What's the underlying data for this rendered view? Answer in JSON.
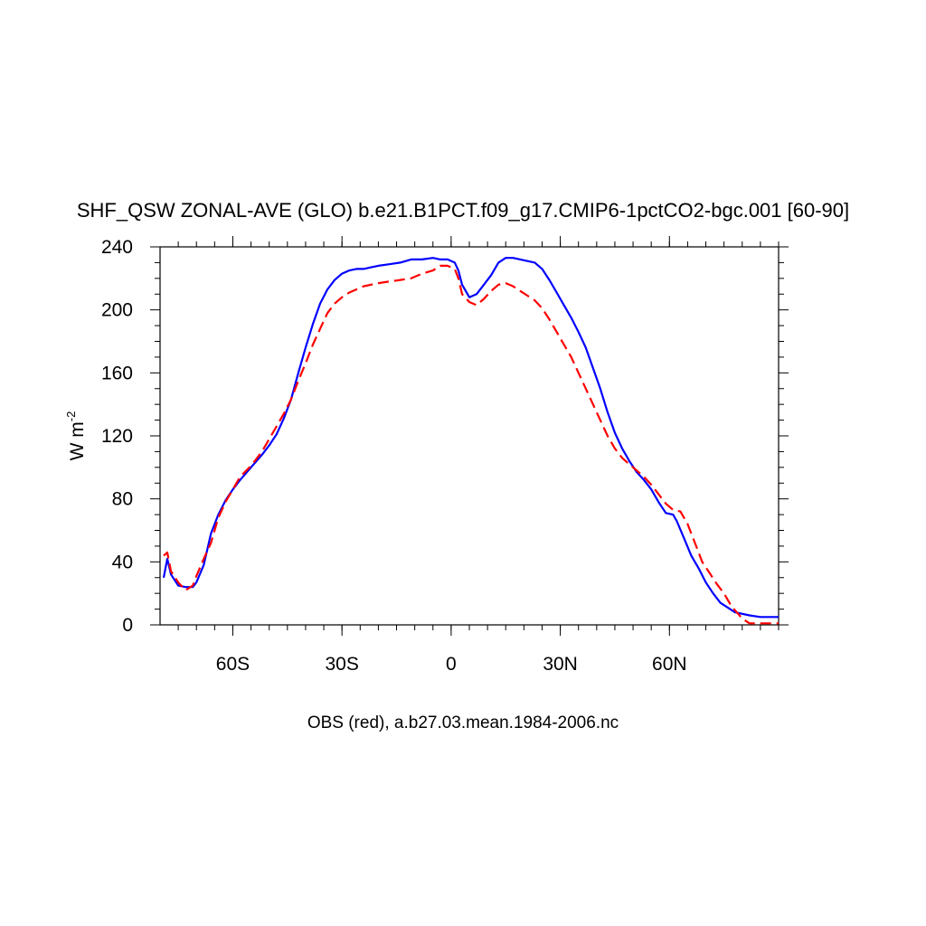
{
  "chart_data": {
    "type": "line",
    "title": "SHF_QSW ZONAL-AVE (GLO) b.e21.B1PCT.f09_g17.CMIP6-1pctCO2-bgc.001 [60-90]",
    "xlabel": "OBS (red), a.b27.03.mean.1984-2006.nc",
    "ylabel": "W m",
    "ylabel_sup": "-2",
    "xlim": [
      -80,
      90
    ],
    "ylim": [
      0,
      240
    ],
    "x_ticks": [
      {
        "value": -60,
        "label": "60S"
      },
      {
        "value": -30,
        "label": "30S"
      },
      {
        "value": 0,
        "label": "0"
      },
      {
        "value": 30,
        "label": "30N"
      },
      {
        "value": 60,
        "label": "60N"
      }
    ],
    "y_ticks": [
      {
        "value": 0,
        "label": "0"
      },
      {
        "value": 40,
        "label": "40"
      },
      {
        "value": 80,
        "label": "80"
      },
      {
        "value": 120,
        "label": "120"
      },
      {
        "value": 160,
        "label": "160"
      },
      {
        "value": 200,
        "label": "200"
      },
      {
        "value": 240,
        "label": "240"
      }
    ],
    "grid": false,
    "series": [
      {
        "color": "#0000ff",
        "style": "solid",
        "points": [
          [
            -79,
            30
          ],
          [
            -78,
            42
          ],
          [
            -77,
            32
          ],
          [
            -75,
            25
          ],
          [
            -73,
            24
          ],
          [
            -71,
            24
          ],
          [
            -70,
            27
          ],
          [
            -68,
            38
          ],
          [
            -66,
            58
          ],
          [
            -64,
            70
          ],
          [
            -62,
            79
          ],
          [
            -60,
            86
          ],
          [
            -58,
            92
          ],
          [
            -55,
            100
          ],
          [
            -52,
            108
          ],
          [
            -50,
            114
          ],
          [
            -48,
            121
          ],
          [
            -46,
            131
          ],
          [
            -44,
            143
          ],
          [
            -42,
            160
          ],
          [
            -40,
            176
          ],
          [
            -38,
            191
          ],
          [
            -36,
            204
          ],
          [
            -34,
            213
          ],
          [
            -32,
            219
          ],
          [
            -30,
            223
          ],
          [
            -28,
            225
          ],
          [
            -26,
            226
          ],
          [
            -24,
            226
          ],
          [
            -22,
            227
          ],
          [
            -20,
            228
          ],
          [
            -17,
            229
          ],
          [
            -14,
            230
          ],
          [
            -11,
            232
          ],
          [
            -8,
            232
          ],
          [
            -5,
            233
          ],
          [
            -3,
            232
          ],
          [
            -1,
            232
          ],
          [
            1,
            230
          ],
          [
            2,
            225
          ],
          [
            3,
            216
          ],
          [
            5,
            208
          ],
          [
            7,
            210
          ],
          [
            9,
            216
          ],
          [
            11,
            222
          ],
          [
            13,
            230
          ],
          [
            15,
            233
          ],
          [
            17,
            233
          ],
          [
            19,
            232
          ],
          [
            21,
            231
          ],
          [
            23,
            230
          ],
          [
            25,
            226
          ],
          [
            27,
            219
          ],
          [
            29,
            211
          ],
          [
            31,
            203
          ],
          [
            33,
            195
          ],
          [
            35,
            186
          ],
          [
            37,
            176
          ],
          [
            39,
            163
          ],
          [
            41,
            150
          ],
          [
            43,
            135
          ],
          [
            45,
            122
          ],
          [
            47,
            112
          ],
          [
            49,
            104
          ],
          [
            51,
            97
          ],
          [
            53,
            92
          ],
          [
            55,
            86
          ],
          [
            57,
            78
          ],
          [
            59,
            71
          ],
          [
            61,
            70
          ],
          [
            62,
            66
          ],
          [
            64,
            55
          ],
          [
            66,
            44
          ],
          [
            68,
            36
          ],
          [
            70,
            27
          ],
          [
            72,
            20
          ],
          [
            74,
            14
          ],
          [
            76,
            11
          ],
          [
            78,
            8
          ],
          [
            82,
            6
          ],
          [
            85,
            5
          ],
          [
            90,
            5
          ]
        ]
      },
      {
        "color": "#ff0000",
        "style": "dashed",
        "points": [
          [
            -79,
            44
          ],
          [
            -78,
            46
          ],
          [
            -77,
            34
          ],
          [
            -75,
            27
          ],
          [
            -73,
            22
          ],
          [
            -71,
            25
          ],
          [
            -70,
            31
          ],
          [
            -68,
            42
          ],
          [
            -66,
            52
          ],
          [
            -64,
            68
          ],
          [
            -62,
            78
          ],
          [
            -60,
            86
          ],
          [
            -58,
            94
          ],
          [
            -55,
            101
          ],
          [
            -52,
            110
          ],
          [
            -50,
            118
          ],
          [
            -48,
            126
          ],
          [
            -46,
            134
          ],
          [
            -44,
            143
          ],
          [
            -42,
            155
          ],
          [
            -40,
            166
          ],
          [
            -38,
            178
          ],
          [
            -36,
            188
          ],
          [
            -34,
            198
          ],
          [
            -32,
            204
          ],
          [
            -30,
            208
          ],
          [
            -28,
            211
          ],
          [
            -26,
            213
          ],
          [
            -24,
            215
          ],
          [
            -22,
            216
          ],
          [
            -20,
            217
          ],
          [
            -17,
            218
          ],
          [
            -14,
            219
          ],
          [
            -11,
            220
          ],
          [
            -8,
            223
          ],
          [
            -5,
            225
          ],
          [
            -3,
            228
          ],
          [
            -1,
            228
          ],
          [
            1,
            226
          ],
          [
            2,
            220
          ],
          [
            3,
            210
          ],
          [
            5,
            205
          ],
          [
            7,
            203
          ],
          [
            9,
            207
          ],
          [
            11,
            212
          ],
          [
            13,
            216
          ],
          [
            15,
            217
          ],
          [
            17,
            215
          ],
          [
            19,
            212
          ],
          [
            21,
            209
          ],
          [
            23,
            206
          ],
          [
            25,
            201
          ],
          [
            27,
            194
          ],
          [
            29,
            186
          ],
          [
            31,
            178
          ],
          [
            33,
            170
          ],
          [
            35,
            160
          ],
          [
            37,
            150
          ],
          [
            39,
            140
          ],
          [
            41,
            130
          ],
          [
            43,
            120
          ],
          [
            45,
            112
          ],
          [
            47,
            106
          ],
          [
            49,
            102
          ],
          [
            51,
            98
          ],
          [
            53,
            94
          ],
          [
            55,
            89
          ],
          [
            57,
            83
          ],
          [
            59,
            77
          ],
          [
            61,
            73
          ],
          [
            63,
            72
          ],
          [
            65,
            64
          ],
          [
            67,
            52
          ],
          [
            69,
            40
          ],
          [
            71,
            33
          ],
          [
            73,
            26
          ],
          [
            75,
            20
          ],
          [
            77,
            12
          ],
          [
            80,
            4
          ],
          [
            82,
            1
          ],
          [
            90,
            1
          ]
        ]
      }
    ]
  }
}
